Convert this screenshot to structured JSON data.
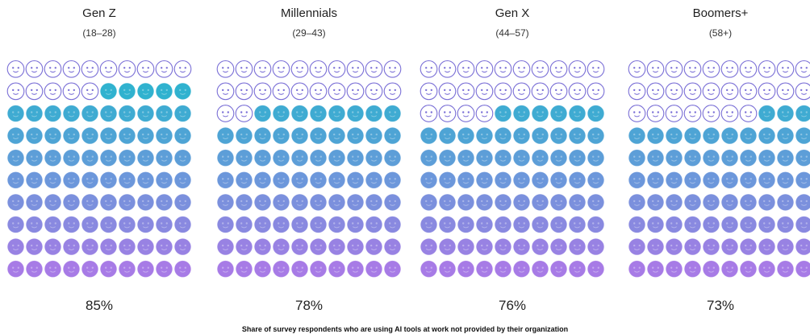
{
  "chart_data": {
    "type": "waffle",
    "units_per_chart": 100,
    "grid": "10x10",
    "fill_order": "bottom-to-top",
    "caption": "Share of survey respondents who are using AI tools at work not provided by their organization",
    "series": [
      {
        "name": "Gen Z",
        "range": "(18–28)",
        "value": 85,
        "label": "85%"
      },
      {
        "name": "Millennials",
        "range": "(29–43)",
        "value": 78,
        "label": "78%"
      },
      {
        "name": "Gen X",
        "range": "(44–57)",
        "value": 76,
        "label": "76%"
      },
      {
        "name": "Boomers+",
        "range": "(58+)",
        "value": 73,
        "label": "73%"
      }
    ],
    "colors": {
      "gradient_top": "#2fb3cf",
      "gradient_bottom": "#a77be6",
      "outline": "#7a6fd6"
    },
    "icon": "person-face-icon"
  }
}
